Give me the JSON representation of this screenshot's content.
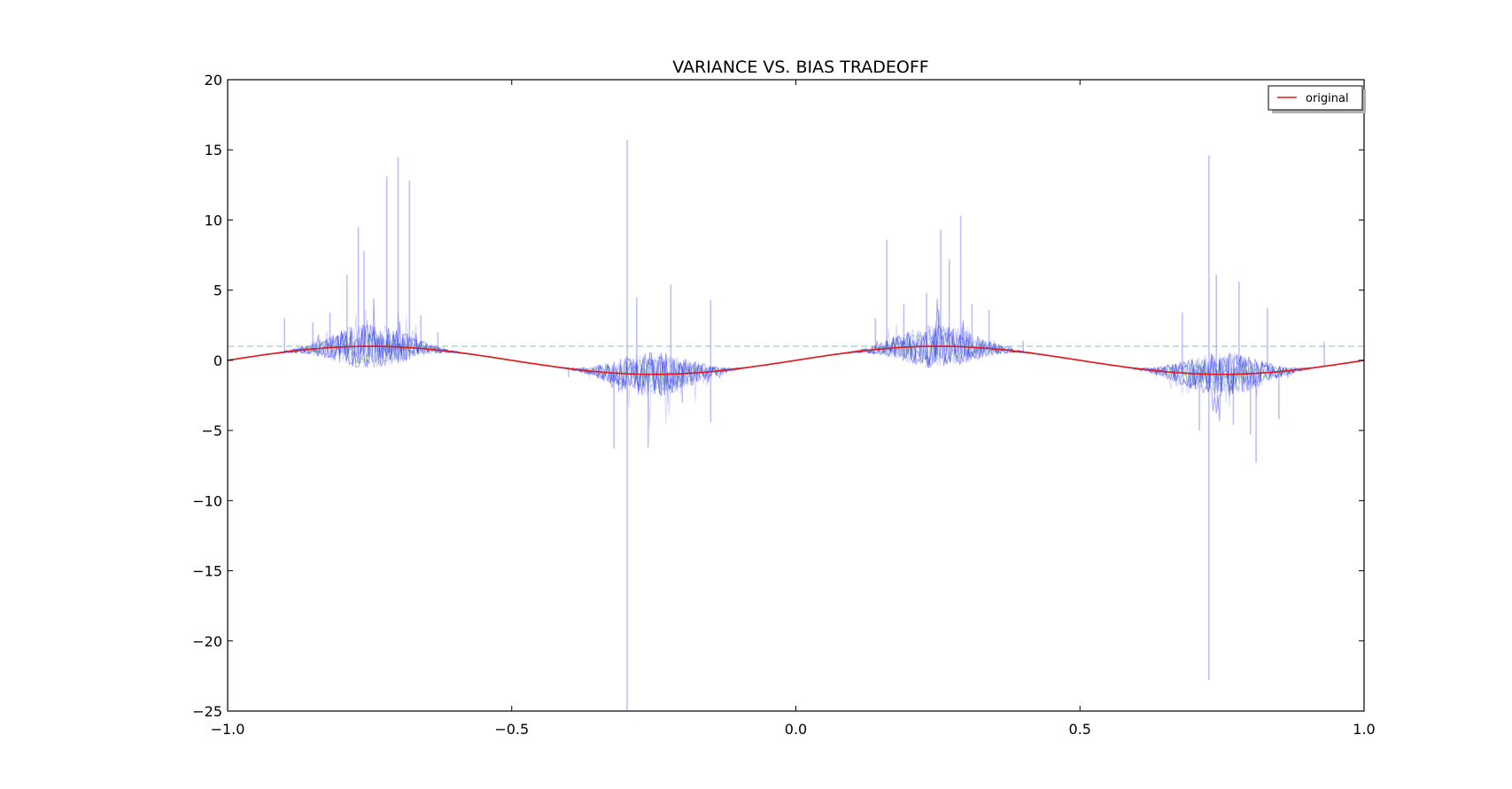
{
  "chart_data": {
    "type": "line",
    "title": "VARIANCE VS. BIAS TRADEOFF",
    "xlabel": "",
    "ylabel": "",
    "xlim": [
      -1.0,
      1.0
    ],
    "ylim": [
      -25,
      20
    ],
    "x_ticks": [
      -1.0,
      -0.5,
      0.0,
      0.5,
      1.0
    ],
    "x_tick_labels": [
      "−1.0",
      "−0.5",
      "0.0",
      "0.5",
      "1.0"
    ],
    "y_ticks": [
      -25,
      -20,
      -15,
      -10,
      -5,
      0,
      5,
      10,
      15,
      20
    ],
    "y_tick_labels": [
      "−25",
      "−20",
      "−15",
      "−10",
      "−5",
      "0",
      "5",
      "10",
      "15",
      "20"
    ],
    "grid": false,
    "legend": {
      "placement": "top-right",
      "entries": [
        {
          "label": "original",
          "color": "#e31a1c"
        }
      ]
    },
    "series": [
      {
        "name": "original",
        "color": "#e31a1c",
        "function": "sin(2*pi*x)",
        "x": [
          -1.0,
          -0.9,
          -0.8,
          -0.75,
          -0.7,
          -0.6,
          -0.5,
          -0.4,
          -0.3,
          -0.25,
          -0.2,
          -0.1,
          0.0,
          0.1,
          0.2,
          0.25,
          0.3,
          0.4,
          0.5,
          0.6,
          0.7,
          0.75,
          0.8,
          0.9,
          1.0
        ],
        "values": [
          0.0,
          0.59,
          0.95,
          1.0,
          0.95,
          0.59,
          0.0,
          -0.59,
          -0.95,
          -1.0,
          -0.95,
          -0.59,
          0.0,
          0.59,
          0.95,
          1.0,
          0.95,
          0.59,
          0.0,
          -0.59,
          -0.95,
          -1.0,
          -0.95,
          -0.59,
          0.0
        ]
      },
      {
        "color": "#0000ff",
        "style": "noisy-fits",
        "spikes": [
          {
            "x": -0.9,
            "y": 3.0
          },
          {
            "x": -0.85,
            "y": 2.7
          },
          {
            "x": -0.82,
            "y": 3.4
          },
          {
            "x": -0.79,
            "y": 6.1
          },
          {
            "x": -0.77,
            "y": 9.5
          },
          {
            "x": -0.76,
            "y": 7.8
          },
          {
            "x": -0.72,
            "y": 13.1
          },
          {
            "x": -0.7,
            "y": 14.5
          },
          {
            "x": -0.68,
            "y": 12.8
          },
          {
            "x": -0.66,
            "y": 3.2
          },
          {
            "x": -0.63,
            "y": 2.0
          },
          {
            "x": -0.4,
            "y": -1.2
          },
          {
            "x": -0.32,
            "y": -6.3
          },
          {
            "x": -0.297,
            "y": 15.7
          },
          {
            "x": -0.297,
            "y": -25.0
          },
          {
            "x": -0.28,
            "y": 4.5
          },
          {
            "x": -0.26,
            "y": -6.2
          },
          {
            "x": -0.22,
            "y": 5.4
          },
          {
            "x": -0.2,
            "y": -3.0
          },
          {
            "x": -0.15,
            "y": 4.3
          },
          {
            "x": -0.15,
            "y": -4.4
          },
          {
            "x": 0.14,
            "y": 3.0
          },
          {
            "x": 0.16,
            "y": 8.6
          },
          {
            "x": 0.19,
            "y": 4.0
          },
          {
            "x": 0.23,
            "y": 4.8
          },
          {
            "x": 0.255,
            "y": 9.3
          },
          {
            "x": 0.27,
            "y": 7.2
          },
          {
            "x": 0.29,
            "y": 10.3
          },
          {
            "x": 0.31,
            "y": 4.0
          },
          {
            "x": 0.34,
            "y": 3.6
          },
          {
            "x": 0.4,
            "y": 1.4
          },
          {
            "x": 0.68,
            "y": 3.4
          },
          {
            "x": 0.71,
            "y": -5.0
          },
          {
            "x": 0.727,
            "y": 14.6
          },
          {
            "x": 0.727,
            "y": -22.8
          },
          {
            "x": 0.74,
            "y": 6.1
          },
          {
            "x": 0.77,
            "y": -4.6
          },
          {
            "x": 0.78,
            "y": 5.6
          },
          {
            "x": 0.8,
            "y": -5.3
          },
          {
            "x": 0.81,
            "y": -7.3
          },
          {
            "x": 0.83,
            "y": 3.7
          },
          {
            "x": 0.85,
            "y": -4.2
          },
          {
            "x": 0.93,
            "y": 1.3
          }
        ]
      },
      {
        "color": "#2ca02c",
        "style": "dashed-fits",
        "amplitude": 1.0
      },
      {
        "color": "#5fa3a3",
        "style": "horizontal-dashed-reference",
        "y": 1.0
      },
      {
        "color": "#000000",
        "style": "mean-fit",
        "function": "sin(2*pi*x)"
      }
    ]
  }
}
